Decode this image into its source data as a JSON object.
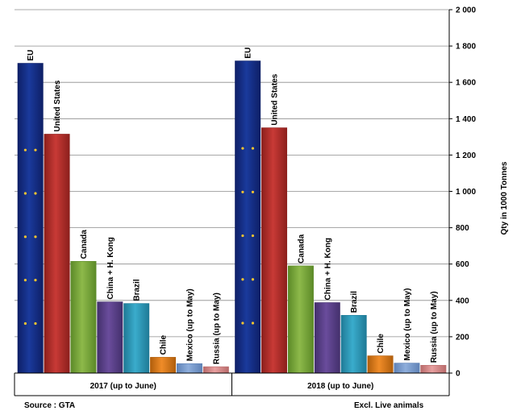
{
  "chart_data": {
    "type": "bar",
    "groups": [
      "2017 (up to June)",
      "2018 (up to June)"
    ],
    "categories": [
      "EU",
      "United States",
      "Canada",
      "China + H. Kong",
      "Brazil",
      "Chile",
      "Mexico (up to May)",
      "Russia (up to May)"
    ],
    "series": [
      {
        "values": [
          1705,
          1315,
          615,
          392,
          383,
          87,
          52,
          35
        ]
      },
      {
        "values": [
          1718,
          1350,
          590,
          388,
          318,
          95,
          55,
          43
        ]
      }
    ],
    "ylabel": "Qty in 1000 Tonnes",
    "ylim": [
      0,
      2000
    ],
    "yticks": [
      0,
      200,
      400,
      600,
      800,
      1000,
      1200,
      1400,
      1600,
      1800,
      2000
    ],
    "ytick_labels": [
      "0",
      "200",
      "400",
      "600",
      "800",
      "1 000",
      "1 200",
      "1 400",
      "1 600",
      "1 800",
      "2 000"
    ],
    "grid": true,
    "bar_colors": [
      "#1a3a9c",
      "#c83a36",
      "#8db94a",
      "#6a4c9c",
      "#3aaccc",
      "#f08c28",
      "#8eaedc",
      "#e8a0a0"
    ],
    "bar_colors_dark": [
      "#0e1f66",
      "#8c1f1c",
      "#5c8a28",
      "#43306c",
      "#1f7a96",
      "#b05e0c",
      "#5f82b6",
      "#b86a6a"
    ]
  },
  "footer": {
    "source": "Source : GTA",
    "note": "Excl. Live animals"
  }
}
